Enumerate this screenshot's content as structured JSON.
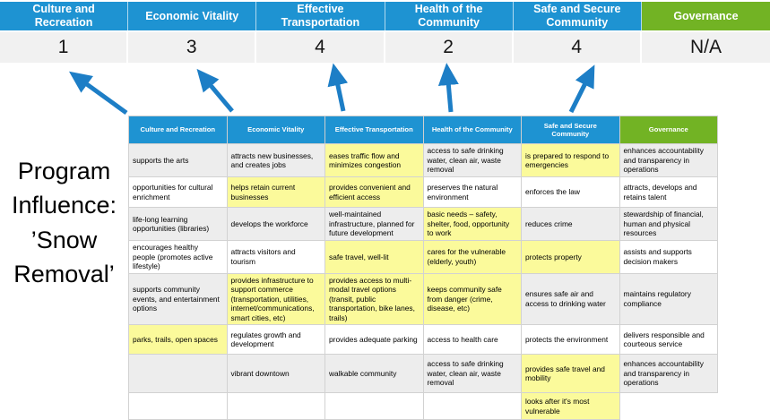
{
  "colors": {
    "header_blue": "#1e93d2",
    "header_green": "#72b324",
    "highlight_yellow": "#fbfa9b",
    "row_gray": "#ededed",
    "score_row_gray": "#f1f1f1",
    "arrow_blue": "#1d7ec6"
  },
  "program_label": "Program Influence: ’Snow Removal’",
  "score_band": {
    "columns": [
      {
        "category": "Culture and Recreation",
        "score": "1",
        "color_key": "blue"
      },
      {
        "category": "Economic Vitality",
        "score": "3",
        "color_key": "blue"
      },
      {
        "category": "Effective Transportation",
        "score": "4",
        "color_key": "blue"
      },
      {
        "category": "Health of the Community",
        "score": "2",
        "color_key": "blue"
      },
      {
        "category": "Safe and Secure Community",
        "score": "4",
        "color_key": "blue"
      },
      {
        "category": "Governance",
        "score": "N/A",
        "color_key": "green"
      }
    ]
  },
  "matrix": {
    "headers": [
      {
        "label": "Culture and Recreation",
        "color_key": "blue"
      },
      {
        "label": "Economic Vitality",
        "color_key": "blue"
      },
      {
        "label": "Effective Transportation",
        "color_key": "blue"
      },
      {
        "label": "Health of the Community",
        "color_key": "blue"
      },
      {
        "label": "Safe and Secure\nCommunity",
        "color_key": "blue"
      },
      {
        "label": "Governance",
        "color_key": "green"
      }
    ],
    "rows": [
      [
        {
          "text": "supports the arts",
          "highlight": false
        },
        {
          "text": "attracts new businesses, and creates jobs",
          "highlight": false
        },
        {
          "text": "eases traffic flow and minimizes congestion",
          "highlight": true
        },
        {
          "text": "access to safe drinking water, clean air, waste removal",
          "highlight": false
        },
        {
          "text": "is prepared to respond to emergencies",
          "highlight": true
        },
        {
          "text": "enhances accountability and transparency in operations",
          "highlight": false
        }
      ],
      [
        {
          "text": "opportunities for cultural enrichment",
          "highlight": false
        },
        {
          "text": "helps retain current businesses",
          "highlight": true
        },
        {
          "text": "provides convenient and efficient access",
          "highlight": true
        },
        {
          "text": "preserves the natural environment",
          "highlight": false
        },
        {
          "text": "enforces the law",
          "highlight": false
        },
        {
          "text": "attracts, develops and retains talent",
          "highlight": false
        }
      ],
      [
        {
          "text": "life-long learning opportunities (libraries)",
          "highlight": false
        },
        {
          "text": "develops the workforce",
          "highlight": false
        },
        {
          "text": "well-maintained infrastructure, planned for future development",
          "highlight": false
        },
        {
          "text": "basic needs – safety, shelter, food, opportunity to work",
          "highlight": true
        },
        {
          "text": "reduces crime",
          "highlight": false
        },
        {
          "text": "stewardship of financial, human and physical resources",
          "highlight": false
        }
      ],
      [
        {
          "text": "encourages healthy people (promotes active lifestyle)",
          "highlight": false
        },
        {
          "text": "attracts visitors and tourism",
          "highlight": false
        },
        {
          "text": "safe travel, well-lit",
          "highlight": true
        },
        {
          "text": "cares for the vulnerable (elderly, youth)",
          "highlight": true
        },
        {
          "text": "protects property",
          "highlight": true
        },
        {
          "text": "assists and supports decision makers",
          "highlight": false
        }
      ],
      [
        {
          "text": "supports community events, and entertainment options",
          "highlight": false
        },
        {
          "text": "provides infrastructure to support commerce (transportation, utilities, internet/communications, smart cities, etc)",
          "highlight": true
        },
        {
          "text": "provides access to multi-modal travel options (transit, public transportation, bike lanes, trails)",
          "highlight": true
        },
        {
          "text": "keeps community safe from danger (crime, disease, etc)",
          "highlight": true
        },
        {
          "text": "ensures safe air and access to drinking water",
          "highlight": false
        },
        {
          "text": "maintains regulatory compliance",
          "highlight": false
        }
      ],
      [
        {
          "text": "parks, trails, open spaces",
          "highlight": true
        },
        {
          "text": "regulates growth and development",
          "highlight": false
        },
        {
          "text": "provides adequate parking",
          "highlight": false
        },
        {
          "text": "access to health care",
          "highlight": false
        },
        {
          "text": "protects the environment",
          "highlight": false
        },
        {
          "text": "delivers responsible and courteous service",
          "highlight": false
        }
      ],
      [
        {
          "text": "",
          "highlight": false
        },
        {
          "text": "vibrant downtown",
          "highlight": false
        },
        {
          "text": "walkable community",
          "highlight": false
        },
        {
          "text": "access to safe drinking water, clean air, waste removal",
          "highlight": false
        },
        {
          "text": "provides safe travel and mobility",
          "highlight": true
        },
        {
          "text": "enhances accountability and transparency in operations",
          "highlight": false
        }
      ],
      [
        {
          "text": "",
          "highlight": false
        },
        {
          "text": "",
          "highlight": false
        },
        {
          "text": "",
          "highlight": false
        },
        {
          "text": "",
          "highlight": false
        },
        {
          "text": "looks after it's most vulnerable",
          "highlight": true
        },
        {
          "text": "",
          "highlight": false
        }
      ]
    ]
  }
}
